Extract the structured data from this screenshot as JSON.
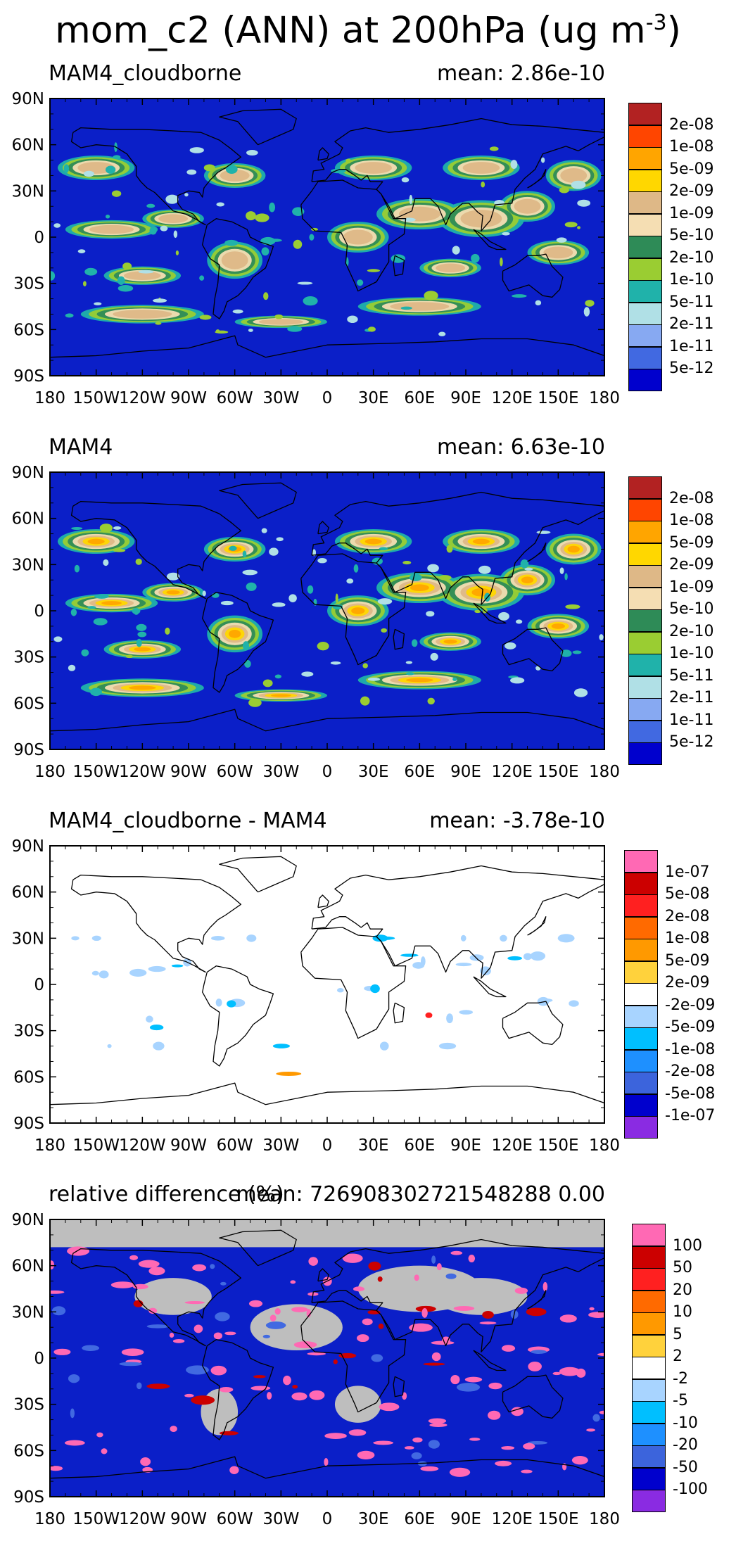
{
  "figure": {
    "title_main": "mom_c2 (ANN) at 200hPa (ug m",
    "title_exp": "-3",
    "title_end": ")"
  },
  "axes": {
    "lat_labels": [
      "90N",
      "60N",
      "30N",
      "0",
      "30S",
      "60S",
      "90S"
    ],
    "lon_labels": [
      "180",
      "150W",
      "120W",
      "90W",
      "60W",
      "30W",
      "0",
      "30E",
      "60E",
      "90E",
      "120E",
      "150E",
      "180"
    ]
  },
  "panels": [
    {
      "title": "MAM4_cloudborne",
      "mean": "mean: 2.86e-10",
      "background": "#0b1fc8",
      "colorbar": {
        "colors": [
          "#b22222",
          "#ff4500",
          "#ffa500",
          "#ffd700",
          "#deb887",
          "#f5deb3",
          "#2e8b57",
          "#9acd32",
          "#20b2aa",
          "#b0e0e6",
          "#87a9f2",
          "#4169e1",
          "#0000cd"
        ],
        "labels": [
          "2e-08",
          "1e-08",
          "5e-09",
          "2e-09",
          "1e-09",
          "5e-10",
          "2e-10",
          "1e-10",
          "5e-11",
          "2e-11",
          "1e-11",
          "5e-12"
        ]
      }
    },
    {
      "title": "MAM4",
      "mean": "mean: 6.63e-10",
      "background": "#0b1fc8",
      "colorbar": {
        "colors": [
          "#b22222",
          "#ff4500",
          "#ffa500",
          "#ffd700",
          "#deb887",
          "#f5deb3",
          "#2e8b57",
          "#9acd32",
          "#20b2aa",
          "#b0e0e6",
          "#87a9f2",
          "#4169e1",
          "#0000cd"
        ],
        "labels": [
          "2e-08",
          "1e-08",
          "5e-09",
          "2e-09",
          "1e-09",
          "5e-10",
          "2e-10",
          "1e-10",
          "5e-11",
          "2e-11",
          "1e-11",
          "5e-12"
        ]
      }
    },
    {
      "title": "MAM4_cloudborne - MAM4",
      "mean": "mean: -3.78e-10",
      "background": "#ffffff",
      "colorbar": {
        "colors": [
          "#ff69b4",
          "#cc0000",
          "#ff2020",
          "#ff6a00",
          "#ff9900",
          "#ffd23c",
          "#ffffff",
          "#a8d4ff",
          "#00bfff",
          "#1e90ff",
          "#3c64dc",
          "#0000cd",
          "#8a2be2"
        ],
        "labels": [
          "1e-07",
          "5e-08",
          "2e-08",
          "1e-08",
          "5e-09",
          "2e-09",
          "-2e-09",
          "-5e-09",
          "-1e-08",
          "-2e-08",
          "-5e-08",
          "-1e-07"
        ]
      }
    },
    {
      "title": "relative difference (%)",
      "mean": "mean: 726908302721548288 0.00",
      "background": "#0b1fc8",
      "colorbar": {
        "colors": [
          "#ff69b4",
          "#cc0000",
          "#ff2020",
          "#ff6a00",
          "#ff9900",
          "#ffd23c",
          "#ffffff",
          "#a8d4ff",
          "#00bfff",
          "#1e90ff",
          "#3c64dc",
          "#0000cd",
          "#8a2be2"
        ],
        "labels": [
          "100",
          "50",
          "20",
          "10",
          "5",
          "2",
          "-2",
          "-5",
          "-10",
          "-20",
          "-50",
          "-100"
        ]
      }
    }
  ]
}
